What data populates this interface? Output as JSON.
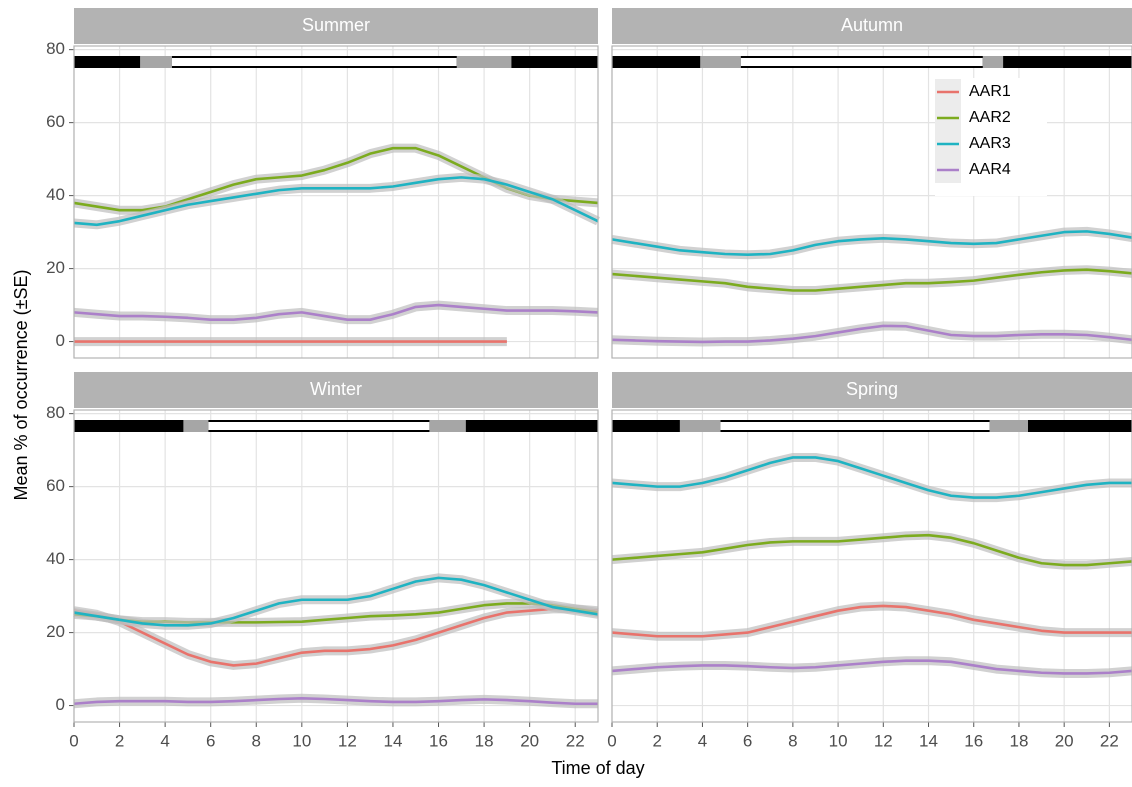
{
  "xlabel": "Time of day",
  "ylabel": "Mean % of occurrence (±SE)",
  "chart_data": [
    {
      "type": "line",
      "title": "Summer",
      "grid": true,
      "x": [
        0,
        1,
        2,
        3,
        4,
        5,
        6,
        7,
        8,
        9,
        10,
        11,
        12,
        13,
        14,
        15,
        16,
        17,
        18,
        19,
        20,
        21,
        22,
        23
      ],
      "xlim": [
        0,
        23
      ],
      "ylim": [
        -4.5,
        81
      ],
      "xticks": [
        0,
        2,
        4,
        6,
        8,
        10,
        12,
        14,
        16,
        18,
        20,
        22
      ],
      "yticks": [
        0,
        20,
        40,
        60,
        80
      ],
      "daylight": {
        "dawn": [
          2.9,
          4.3
        ],
        "dusk": [
          16.8,
          19.2
        ]
      },
      "series": [
        {
          "name": "AAR1",
          "color": "#e8736c",
          "values": [
            0,
            0,
            0,
            0,
            0,
            0,
            0,
            0,
            0,
            0,
            0,
            0,
            0,
            0,
            0,
            0,
            0,
            0,
            0,
            0,
            null,
            null,
            null,
            null
          ]
        },
        {
          "name": "AAR2",
          "color": "#7cab1f",
          "values": [
            38,
            37,
            36,
            36,
            37,
            39,
            41,
            43,
            44.5,
            45,
            45.5,
            47,
            49,
            51.5,
            53,
            53,
            51,
            48,
            45,
            42,
            40,
            39,
            38.5,
            38
          ]
        },
        {
          "name": "AAR3",
          "color": "#1fb3c2",
          "values": [
            32.5,
            32,
            33,
            34.5,
            36,
            37.5,
            38.5,
            39.5,
            40.5,
            41.5,
            42,
            42,
            42,
            42,
            42.5,
            43.5,
            44.5,
            45,
            44.5,
            43,
            41,
            39,
            36,
            33
          ]
        },
        {
          "name": "AAR4",
          "color": "#ab80c9",
          "values": [
            8,
            7.5,
            7,
            7,
            6.8,
            6.5,
            6,
            6,
            6.5,
            7.5,
            8,
            7,
            6,
            6,
            7.5,
            9.5,
            10,
            9.5,
            9,
            8.5,
            8.5,
            8.5,
            8.3,
            8
          ]
        }
      ]
    },
    {
      "type": "line",
      "title": "Autumn",
      "grid": true,
      "legend": "top-right",
      "x": [
        0,
        1,
        2,
        3,
        4,
        5,
        6,
        7,
        8,
        9,
        10,
        11,
        12,
        13,
        14,
        15,
        16,
        17,
        18,
        19,
        20,
        21,
        22,
        23
      ],
      "xlim": [
        0,
        23
      ],
      "ylim": [
        -4.5,
        81
      ],
      "xticks": [
        0,
        2,
        4,
        6,
        8,
        10,
        12,
        14,
        16,
        18,
        20,
        22
      ],
      "yticks": [
        0,
        20,
        40,
        60,
        80
      ],
      "daylight": {
        "dawn": [
          3.9,
          5.7
        ],
        "dusk": [
          16.4,
          17.3
        ]
      },
      "series": [
        {
          "name": "AAR2",
          "color": "#7cab1f",
          "values": [
            18.5,
            18,
            17.5,
            17,
            16.5,
            16,
            15,
            14.5,
            14,
            14,
            14.5,
            15,
            15.5,
            16,
            16,
            16.3,
            16.7,
            17.5,
            18.3,
            19,
            19.5,
            19.7,
            19.3,
            18.7
          ]
        },
        {
          "name": "AAR3",
          "color": "#1fb3c2",
          "values": [
            28,
            27,
            26,
            25,
            24.5,
            24,
            23.8,
            24,
            25,
            26.5,
            27.5,
            28,
            28.3,
            28,
            27.5,
            27,
            26.8,
            27,
            28,
            29,
            30,
            30.2,
            29.5,
            28.5
          ]
        },
        {
          "name": "AAR4",
          "color": "#ab80c9",
          "values": [
            0.5,
            0.3,
            0.1,
            0,
            -0.1,
            0,
            0,
            0.3,
            0.8,
            1.5,
            2.5,
            3.5,
            4.3,
            4.2,
            3,
            1.8,
            1.5,
            1.5,
            1.8,
            2,
            2,
            1.8,
            1.2,
            0.5
          ]
        }
      ]
    },
    {
      "type": "line",
      "title": "Winter",
      "grid": true,
      "x": [
        0,
        1,
        2,
        3,
        4,
        5,
        6,
        7,
        8,
        9,
        10,
        11,
        12,
        13,
        14,
        15,
        16,
        17,
        18,
        19,
        20,
        21,
        22,
        23
      ],
      "xlim": [
        0,
        23
      ],
      "ylim": [
        -4.5,
        81
      ],
      "xticks": [
        0,
        2,
        4,
        6,
        8,
        10,
        12,
        14,
        16,
        18,
        20,
        22
      ],
      "yticks": [
        0,
        20,
        40,
        60,
        80
      ],
      "daylight": {
        "dawn": [
          4.8,
          5.9
        ],
        "dusk": [
          15.6,
          17.2
        ]
      },
      "series": [
        {
          "name": "AAR1",
          "color": "#e8736c",
          "values": [
            26,
            25,
            23,
            20,
            17,
            14,
            12,
            11,
            11.5,
            13,
            14.5,
            15,
            15,
            15.5,
            16.5,
            18,
            20,
            22,
            24,
            25.5,
            26,
            26.5,
            26.5,
            26
          ]
        },
        {
          "name": "AAR2",
          "color": "#7cab1f",
          "values": [
            25,
            24.5,
            23.5,
            23,
            23,
            22.8,
            22.8,
            22.8,
            22.8,
            22.9,
            23,
            23.5,
            24,
            24.5,
            24.7,
            25,
            25.5,
            26.5,
            27.5,
            28,
            28,
            27.5,
            26.5,
            25.5
          ]
        },
        {
          "name": "AAR3",
          "color": "#1fb3c2",
          "values": [
            25.5,
            24.5,
            23.5,
            22.5,
            22,
            22,
            22.5,
            24,
            26,
            28,
            29,
            29,
            29,
            30,
            32,
            34,
            35,
            34.5,
            33,
            31,
            29,
            27,
            26,
            25
          ]
        },
        {
          "name": "AAR4",
          "color": "#ab80c9",
          "values": [
            0.5,
            1,
            1.2,
            1.2,
            1.2,
            1,
            1,
            1.2,
            1.5,
            1.8,
            2,
            1.8,
            1.5,
            1.2,
            1,
            1,
            1.2,
            1.5,
            1.7,
            1.5,
            1.2,
            0.8,
            0.5,
            0.5
          ]
        }
      ]
    },
    {
      "type": "line",
      "title": "Spring",
      "grid": true,
      "x": [
        0,
        1,
        2,
        3,
        4,
        5,
        6,
        7,
        8,
        9,
        10,
        11,
        12,
        13,
        14,
        15,
        16,
        17,
        18,
        19,
        20,
        21,
        22,
        23
      ],
      "xlim": [
        0,
        23
      ],
      "ylim": [
        -4.5,
        81
      ],
      "xticks": [
        0,
        2,
        4,
        6,
        8,
        10,
        12,
        14,
        16,
        18,
        20,
        22
      ],
      "yticks": [
        0,
        20,
        40,
        60,
        80
      ],
      "daylight": {
        "dawn": [
          3.0,
          4.8
        ],
        "dusk": [
          16.7,
          18.4
        ]
      },
      "series": [
        {
          "name": "AAR1",
          "color": "#e8736c",
          "values": [
            20,
            19.5,
            19,
            19,
            19,
            19.5,
            20,
            21.5,
            23,
            24.5,
            26,
            27,
            27.3,
            27,
            26,
            25,
            23.5,
            22.5,
            21.5,
            20.5,
            20,
            20,
            20,
            20
          ]
        },
        {
          "name": "AAR2",
          "color": "#7cab1f",
          "values": [
            40,
            40.5,
            41,
            41.5,
            42,
            43,
            44,
            44.7,
            45,
            45,
            45,
            45.5,
            46,
            46.5,
            46.7,
            46,
            44.5,
            42.5,
            40.5,
            39,
            38.5,
            38.5,
            39,
            39.5
          ]
        },
        {
          "name": "AAR3",
          "color": "#1fb3c2",
          "values": [
            61,
            60.5,
            60,
            60,
            61,
            62.5,
            64.5,
            66.5,
            68,
            68,
            67,
            65,
            63,
            61,
            59,
            57.5,
            57,
            57,
            57.5,
            58.5,
            59.5,
            60.5,
            61,
            61
          ]
        },
        {
          "name": "AAR4",
          "color": "#ab80c9",
          "values": [
            9.5,
            10,
            10.5,
            10.8,
            11,
            11,
            10.8,
            10.5,
            10.3,
            10.5,
            11,
            11.5,
            12,
            12.3,
            12.3,
            12,
            11,
            10,
            9.5,
            9,
            8.8,
            8.8,
            9,
            9.5
          ]
        }
      ]
    }
  ]
}
